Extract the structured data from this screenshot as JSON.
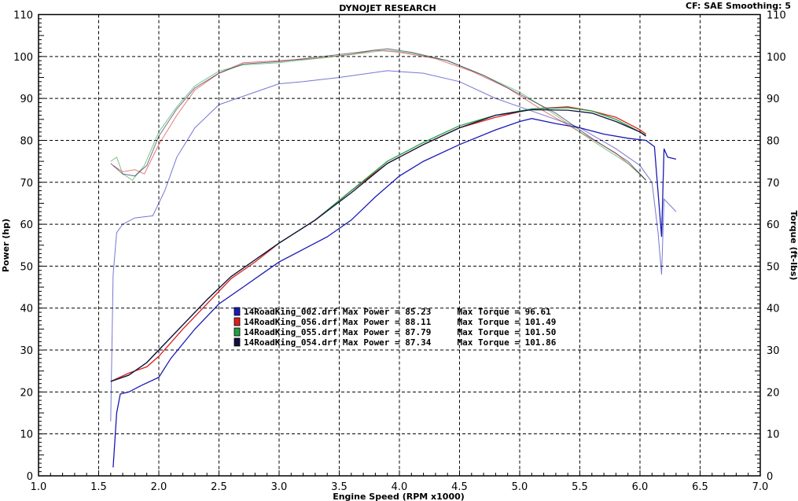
{
  "header": {
    "title": "DYNOJET RESEARCH",
    "settings": "CF: SAE  Smoothing: 5"
  },
  "chart_data": {
    "type": "line",
    "title": "DYNOJET RESEARCH",
    "xlabel": "Engine Speed (RPM x1000)",
    "ylabel": "Power (hp)",
    "y2label": "Torque (ft-lbs)",
    "xlim": [
      1.0,
      7.0
    ],
    "ylim": [
      0,
      110
    ],
    "y2lim": [
      0,
      110
    ],
    "xticks": [
      "1.0",
      "1.5",
      "2.0",
      "2.5",
      "3.0",
      "3.5",
      "4.0",
      "4.5",
      "5.0",
      "5.5",
      "6.0",
      "6.5",
      "7.0"
    ],
    "yticks": [
      "0",
      "10",
      "20",
      "30",
      "40",
      "50",
      "60",
      "70",
      "80",
      "90",
      "100",
      "110"
    ],
    "grid": true,
    "legend_position": "center",
    "series": [
      {
        "name": "14RoadKing_002.drf",
        "legend": "14RoadKing_002.drf Max Power = 85.23     Max Torque = 96.61",
        "color": "#1a1ab4",
        "power": [
          [
            1.62,
            2
          ],
          [
            1.65,
            15
          ],
          [
            1.68,
            19.5
          ],
          [
            1.75,
            20
          ],
          [
            1.85,
            21.5
          ],
          [
            2.0,
            23.5
          ],
          [
            2.1,
            28
          ],
          [
            2.3,
            35
          ],
          [
            2.5,
            41
          ],
          [
            2.7,
            45
          ],
          [
            2.9,
            49
          ],
          [
            3.0,
            51
          ],
          [
            3.2,
            54
          ],
          [
            3.4,
            57
          ],
          [
            3.6,
            61
          ],
          [
            3.8,
            66.5
          ],
          [
            4.0,
            71.5
          ],
          [
            4.2,
            75
          ],
          [
            4.5,
            79
          ],
          [
            4.8,
            82.5
          ],
          [
            5.0,
            84.5
          ],
          [
            5.1,
            85.2
          ],
          [
            5.3,
            84
          ],
          [
            5.5,
            83
          ],
          [
            5.7,
            81.5
          ],
          [
            5.9,
            80.5
          ],
          [
            6.05,
            80
          ],
          [
            6.12,
            78.5
          ],
          [
            6.18,
            57
          ],
          [
            6.2,
            78
          ],
          [
            6.23,
            76
          ],
          [
            6.3,
            75.5
          ]
        ],
        "torque": [
          [
            1.6,
            13
          ],
          [
            1.62,
            48
          ],
          [
            1.65,
            58
          ],
          [
            1.7,
            60
          ],
          [
            1.8,
            61.5
          ],
          [
            1.95,
            62
          ],
          [
            2.05,
            68
          ],
          [
            2.15,
            76
          ],
          [
            2.3,
            83
          ],
          [
            2.5,
            88.5
          ],
          [
            2.8,
            91.5
          ],
          [
            3.0,
            93.5
          ],
          [
            3.2,
            94
          ],
          [
            3.5,
            95
          ],
          [
            3.9,
            96.6
          ],
          [
            4.2,
            96
          ],
          [
            4.5,
            94
          ],
          [
            4.8,
            90
          ],
          [
            5.0,
            88
          ],
          [
            5.3,
            85
          ],
          [
            5.5,
            83
          ],
          [
            5.8,
            78
          ],
          [
            6.0,
            74
          ],
          [
            6.1,
            70
          ],
          [
            6.15,
            58
          ],
          [
            6.18,
            48
          ],
          [
            6.2,
            66
          ],
          [
            6.3,
            63
          ]
        ]
      },
      {
        "name": "14RoadKing_056.drf",
        "legend": "14RoadKing_056.drf Max Power = 88.11     Max Torque = 101.49",
        "color": "#dc1e1e",
        "power": [
          [
            1.6,
            22.5
          ],
          [
            1.75,
            24.5
          ],
          [
            1.9,
            26
          ],
          [
            2.0,
            28.5
          ],
          [
            2.2,
            35
          ],
          [
            2.4,
            41
          ],
          [
            2.6,
            47
          ],
          [
            2.8,
            51
          ],
          [
            3.0,
            55.5
          ],
          [
            3.3,
            61
          ],
          [
            3.6,
            68
          ],
          [
            3.9,
            74.5
          ],
          [
            4.2,
            79
          ],
          [
            4.5,
            83
          ],
          [
            4.8,
            85.5
          ],
          [
            5.1,
            87.5
          ],
          [
            5.4,
            88
          ],
          [
            5.6,
            87
          ],
          [
            5.8,
            85.5
          ],
          [
            6.0,
            82.5
          ],
          [
            6.05,
            81.5
          ]
        ],
        "torque": [
          [
            1.62,
            74
          ],
          [
            1.7,
            72.5
          ],
          [
            1.8,
            73
          ],
          [
            1.88,
            72
          ],
          [
            2.0,
            79
          ],
          [
            2.15,
            86
          ],
          [
            2.3,
            92
          ],
          [
            2.5,
            96
          ],
          [
            2.7,
            98.5
          ],
          [
            3.0,
            99
          ],
          [
            3.3,
            99.5
          ],
          [
            3.6,
            100.5
          ],
          [
            3.8,
            101.5
          ],
          [
            4.0,
            101
          ],
          [
            4.3,
            99.5
          ],
          [
            4.6,
            96.5
          ],
          [
            4.9,
            92.5
          ],
          [
            5.2,
            87
          ],
          [
            5.5,
            82
          ],
          [
            5.8,
            77
          ],
          [
            6.0,
            72
          ],
          [
            6.05,
            70.5
          ]
        ]
      },
      {
        "name": "14RoadKing_055.drf",
        "legend": "14RoadKing_055.drf Max Power = 87.79     Max Torque = 101.50",
        "color": "#23a043",
        "power": [
          [
            1.6,
            22.5
          ],
          [
            1.75,
            24
          ],
          [
            1.9,
            27
          ],
          [
            2.0,
            30
          ],
          [
            2.2,
            36
          ],
          [
            2.4,
            42
          ],
          [
            2.6,
            47.5
          ],
          [
            2.8,
            51.5
          ],
          [
            3.0,
            55.5
          ],
          [
            3.3,
            61
          ],
          [
            3.6,
            68
          ],
          [
            3.9,
            75
          ],
          [
            4.2,
            79.5
          ],
          [
            4.5,
            83.5
          ],
          [
            4.8,
            86
          ],
          [
            5.1,
            87.5
          ],
          [
            5.4,
            87.8
          ],
          [
            5.6,
            87
          ],
          [
            5.8,
            85
          ],
          [
            6.0,
            82
          ],
          [
            6.05,
            81.2
          ]
        ],
        "torque": [
          [
            1.6,
            75
          ],
          [
            1.65,
            76
          ],
          [
            1.7,
            72
          ],
          [
            1.78,
            70.5
          ],
          [
            1.88,
            74
          ],
          [
            2.0,
            82
          ],
          [
            2.15,
            88
          ],
          [
            2.3,
            93
          ],
          [
            2.5,
            96.5
          ],
          [
            2.7,
            98
          ],
          [
            3.0,
            98.5
          ],
          [
            3.3,
            99.5
          ],
          [
            3.6,
            100.5
          ],
          [
            3.9,
            101.5
          ],
          [
            4.1,
            100.8
          ],
          [
            4.4,
            99
          ],
          [
            4.7,
            95.5
          ],
          [
            5.0,
            91.5
          ],
          [
            5.3,
            86
          ],
          [
            5.6,
            80
          ],
          [
            5.9,
            74.5
          ],
          [
            6.05,
            70.5
          ]
        ]
      },
      {
        "name": "14RoadKing_054.drf",
        "legend": "14RoadKing_054.drf Max Power = 87.34     Max Torque = 101.86",
        "color": "#101040",
        "power": [
          [
            1.6,
            22.5
          ],
          [
            1.75,
            24
          ],
          [
            1.9,
            27
          ],
          [
            2.0,
            30
          ],
          [
            2.2,
            36
          ],
          [
            2.4,
            42
          ],
          [
            2.6,
            47.5
          ],
          [
            2.8,
            51.5
          ],
          [
            3.0,
            55.5
          ],
          [
            3.3,
            61
          ],
          [
            3.6,
            67.5
          ],
          [
            3.9,
            74.5
          ],
          [
            4.2,
            79
          ],
          [
            4.5,
            83
          ],
          [
            4.8,
            86
          ],
          [
            5.1,
            87.3
          ],
          [
            5.4,
            87.2
          ],
          [
            5.6,
            86.5
          ],
          [
            5.8,
            84.5
          ],
          [
            6.0,
            82
          ],
          [
            6.05,
            81
          ]
        ],
        "torque": [
          [
            1.6,
            74.5
          ],
          [
            1.7,
            72
          ],
          [
            1.8,
            71.5
          ],
          [
            1.9,
            74
          ],
          [
            2.0,
            81
          ],
          [
            2.15,
            87.5
          ],
          [
            2.3,
            92.5
          ],
          [
            2.5,
            96
          ],
          [
            2.7,
            98.2
          ],
          [
            3.0,
            98.8
          ],
          [
            3.3,
            99.8
          ],
          [
            3.6,
            100.8
          ],
          [
            3.9,
            101.86
          ],
          [
            4.1,
            101
          ],
          [
            4.4,
            99
          ],
          [
            4.7,
            95.5
          ],
          [
            5.0,
            91
          ],
          [
            5.3,
            86.5
          ],
          [
            5.6,
            80.5
          ],
          [
            5.9,
            75
          ],
          [
            6.05,
            70.5
          ]
        ]
      }
    ]
  }
}
